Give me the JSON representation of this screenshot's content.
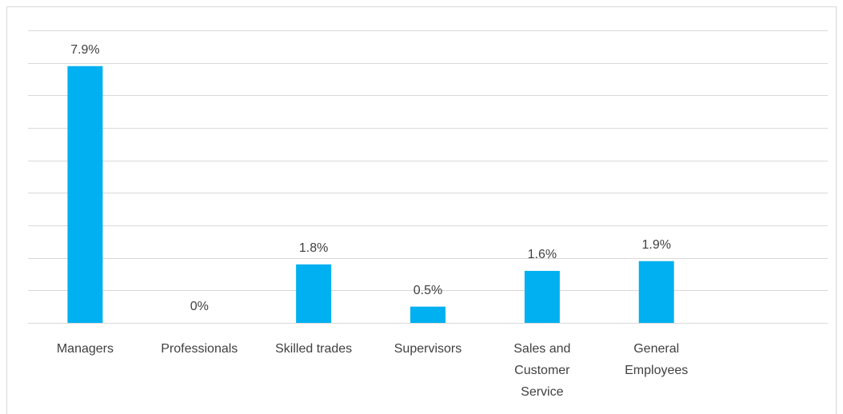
{
  "chart_data": {
    "type": "bar",
    "categories": [
      "Managers",
      "Professionals",
      "Skilled trades",
      "Supervisors",
      "Sales and Customer Service",
      "General Employees",
      null
    ],
    "values": [
      7.9,
      0,
      1.8,
      0.5,
      1.6,
      1.9,
      null
    ],
    "value_labels": [
      "7.9%",
      "0%",
      "1.8%",
      "0.5%",
      "1.6%",
      "1.9%",
      null
    ],
    "color": "#00b0f0",
    "ylim": [
      0,
      9
    ],
    "yticks": [
      0,
      1,
      2,
      3,
      4,
      5,
      6,
      7,
      8,
      9
    ],
    "grid": true
  }
}
